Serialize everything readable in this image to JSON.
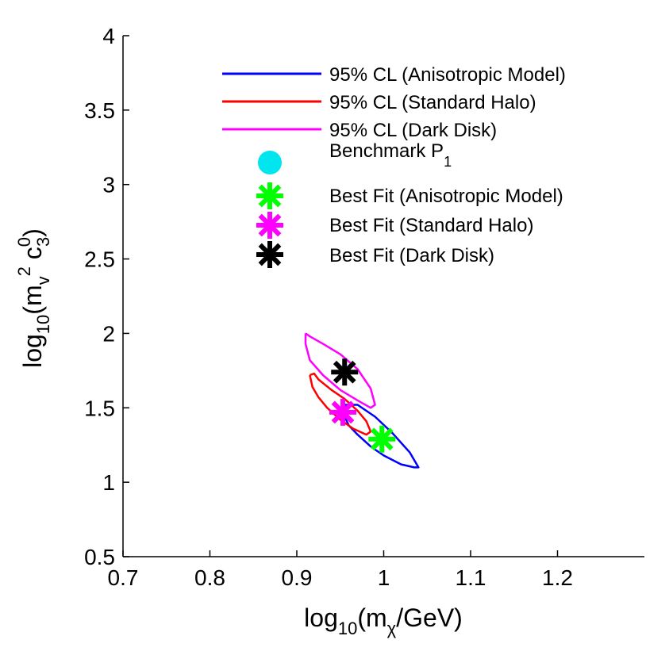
{
  "chart_data": {
    "type": "line",
    "xlabel": {
      "prefix": "log",
      "sub": "10",
      "body": "(m",
      "body_sub": "χ",
      "suffix": "/GeV)"
    },
    "ylabel": {
      "prefix": "log",
      "sub": "10",
      "body": "(m",
      "body_sub": "v",
      "sup2": "2",
      "c": " c",
      "c_sup": "0",
      "c_sub": "3",
      "suffix": ")"
    },
    "xlim": [
      0.7,
      1.3
    ],
    "ylim": [
      0.5,
      4.0
    ],
    "xticks": [
      0.7,
      0.8,
      0.9,
      1.0,
      1.1,
      1.2
    ],
    "xtick_labels": [
      "0.7",
      "0.8",
      "0.9",
      "1",
      "1.1",
      "1.2"
    ],
    "yticks": [
      0.5,
      1.0,
      1.5,
      2.0,
      2.5,
      3.0,
      3.5,
      4.0
    ],
    "ytick_labels": [
      "0.5",
      "1",
      "1.5",
      "2",
      "2.5",
      "3",
      "3.5",
      "4"
    ],
    "legend_position": "top-right",
    "contours": [
      {
        "name": "95% CL (Anisotropic Model)",
        "color": "#0000ff",
        "points": [
          [
            0.955,
            1.52
          ],
          [
            0.97,
            1.52
          ],
          [
            0.99,
            1.44
          ],
          [
            1.01,
            1.33
          ],
          [
            1.03,
            1.2
          ],
          [
            1.04,
            1.1
          ],
          [
            1.035,
            1.1
          ],
          [
            1.02,
            1.12
          ],
          [
            1.0,
            1.18
          ],
          [
            0.985,
            1.24
          ],
          [
            0.97,
            1.32
          ],
          [
            0.96,
            1.38
          ],
          [
            0.955,
            1.44
          ],
          [
            0.955,
            1.52
          ]
        ]
      },
      {
        "name": "95% CL (Standard Halo)",
        "color": "#ff0000",
        "points": [
          [
            0.915,
            1.72
          ],
          [
            0.92,
            1.73
          ],
          [
            0.925,
            1.69
          ],
          [
            0.94,
            1.62
          ],
          [
            0.955,
            1.56
          ],
          [
            0.97,
            1.48
          ],
          [
            0.98,
            1.41
          ],
          [
            0.985,
            1.34
          ],
          [
            0.98,
            1.32
          ],
          [
            0.965,
            1.36
          ],
          [
            0.95,
            1.42
          ],
          [
            0.935,
            1.5
          ],
          [
            0.925,
            1.57
          ],
          [
            0.918,
            1.64
          ],
          [
            0.915,
            1.72
          ]
        ]
      },
      {
        "name": "95% CL (Dark Disk)",
        "color": "#ff00ff",
        "points": [
          [
            0.91,
            2.0
          ],
          [
            0.915,
            1.98
          ],
          [
            0.93,
            1.93
          ],
          [
            0.95,
            1.86
          ],
          [
            0.97,
            1.76
          ],
          [
            0.985,
            1.63
          ],
          [
            0.99,
            1.52
          ],
          [
            0.985,
            1.5
          ],
          [
            0.97,
            1.55
          ],
          [
            0.95,
            1.62
          ],
          [
            0.93,
            1.72
          ],
          [
            0.915,
            1.82
          ],
          [
            0.91,
            1.93
          ],
          [
            0.91,
            2.0
          ]
        ]
      }
    ],
    "markers": [
      {
        "name": "Benchmark P",
        "name_sub": "1",
        "shape": "circle",
        "color": "#00e5ee",
        "x": null,
        "y": null
      },
      {
        "name": "Best Fit (Anisotropic Model)",
        "shape": "asterisk",
        "color": "#00ff00",
        "x": 0.998,
        "y": 1.29
      },
      {
        "name": "Best Fit (Standard Halo)",
        "shape": "asterisk",
        "color": "#ff00ff",
        "x": 0.953,
        "y": 1.47
      },
      {
        "name": "Best Fit (Dark Disk)",
        "shape": "asterisk",
        "color": "#000000",
        "x": 0.955,
        "y": 1.74
      }
    ]
  }
}
